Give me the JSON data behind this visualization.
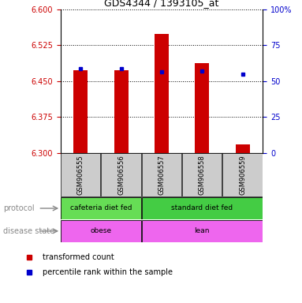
{
  "title": "GDS4344 / 1393105_at",
  "samples": [
    "GSM906555",
    "GSM906556",
    "GSM906557",
    "GSM906558",
    "GSM906559"
  ],
  "red_values": [
    6.472,
    6.472,
    6.548,
    6.488,
    6.318
  ],
  "blue_values": [
    6.476,
    6.476,
    6.469,
    6.471,
    6.464
  ],
  "ylim_left": [
    6.3,
    6.6
  ],
  "ylim_right": [
    0,
    100
  ],
  "left_ticks": [
    6.3,
    6.375,
    6.45,
    6.525,
    6.6
  ],
  "right_ticks": [
    0,
    25,
    50,
    75,
    100
  ],
  "right_tick_labels": [
    "0",
    "25",
    "50",
    "75",
    "100%"
  ],
  "bar_color": "#cc0000",
  "dot_color": "#0000cc",
  "left_label_color": "#cc0000",
  "right_label_color": "#0000cc",
  "sample_box_color": "#cccccc",
  "protocol_color_left": "#66dd55",
  "protocol_color_right": "#44cc44",
  "disease_color": "#ee66ee",
  "base_value": 6.3,
  "bar_width": 0.35
}
